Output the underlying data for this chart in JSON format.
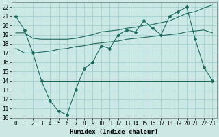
{
  "xlabel": "Humidex (Indice chaleur)",
  "ylabel": "",
  "xlim": [
    -0.5,
    23.5
  ],
  "ylim": [
    10,
    22.5
  ],
  "yticks": [
    10,
    11,
    12,
    13,
    14,
    15,
    16,
    17,
    18,
    19,
    20,
    21,
    22
  ],
  "xticks": [
    0,
    1,
    2,
    3,
    4,
    5,
    6,
    7,
    8,
    9,
    10,
    11,
    12,
    13,
    14,
    15,
    16,
    17,
    18,
    19,
    20,
    21,
    22,
    23
  ],
  "bg_color": "#cce8e4",
  "line_color": "#1a6b5e",
  "grid_color": "#99cccc",
  "series_zigzag_x": [
    0,
    1,
    2,
    3,
    4,
    5,
    6,
    7,
    8,
    9,
    10,
    11,
    12,
    13,
    14,
    15,
    16,
    17,
    18,
    19,
    20,
    21,
    22,
    23
  ],
  "series_zigzag_y": [
    21.0,
    19.5,
    17.0,
    14.0,
    11.8,
    10.7,
    10.3,
    13.0,
    15.3,
    16.0,
    17.8,
    17.5,
    19.0,
    19.5,
    19.3,
    20.5,
    19.7,
    19.0,
    21.0,
    21.5,
    22.0,
    18.5,
    15.5,
    14.0
  ],
  "series_upper_x": [
    0,
    1,
    2,
    3,
    4,
    5,
    6,
    7,
    8,
    9,
    10,
    11,
    12,
    13,
    14,
    15,
    16,
    17,
    18,
    19,
    20,
    21,
    22,
    23
  ],
  "series_upper_y": [
    19.2,
    19.2,
    18.6,
    18.5,
    18.5,
    18.5,
    18.5,
    18.6,
    18.8,
    19.0,
    19.3,
    19.4,
    19.5,
    19.7,
    19.8,
    20.0,
    20.1,
    20.3,
    20.5,
    20.9,
    21.3,
    21.5,
    21.9,
    22.2
  ],
  "series_lower_x": [
    0,
    1,
    2,
    3,
    4,
    5,
    6,
    7,
    8,
    9,
    10,
    11,
    12,
    13,
    14,
    15,
    16,
    17,
    18,
    19,
    20,
    21,
    22,
    23
  ],
  "series_lower_y": [
    17.5,
    17.0,
    17.0,
    17.1,
    17.2,
    17.4,
    17.5,
    17.7,
    17.8,
    18.0,
    18.1,
    18.2,
    18.3,
    18.5,
    18.6,
    18.7,
    18.8,
    18.9,
    19.0,
    19.1,
    19.3,
    19.4,
    19.5,
    19.2
  ],
  "series_flat_x": [
    3,
    10,
    19,
    22,
    23
  ],
  "series_flat_y": [
    14.0,
    14.0,
    14.0,
    14.0,
    14.0
  ],
  "tick_fontsize": 5.5,
  "xlabel_fontsize": 6.5
}
